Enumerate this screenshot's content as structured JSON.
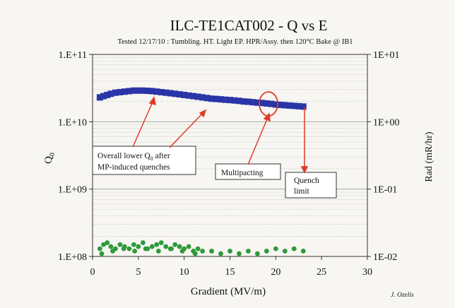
{
  "chart_data": {
    "type": "scatter",
    "title": "ILC-TE1CAT002 - Q vs E",
    "subtitle": "Tested 12/17/10 :  Tumbling. HT. Light EP. HPR/Assy. then 120°C Bake @ IB1",
    "xlabel": "Gradient (MV/m)",
    "ylabel_left": "Q",
    "ylabel_left_subscript": "0",
    "ylabel_right": "Rad (mR/hr)",
    "xlim": [
      0,
      30
    ],
    "ylim_left": [
      100000000,
      100000000000
    ],
    "ylim_right": [
      0.01,
      10
    ],
    "yscale": "log",
    "x_ticks": [
      0,
      5,
      10,
      15,
      20,
      25,
      30
    ],
    "x_tick_labels": [
      "0",
      "5",
      "10",
      "15",
      "20",
      "25",
      "30"
    ],
    "y_left_ticks": [
      100000000000,
      10000000000,
      1000000000,
      100000000
    ],
    "y_left_tick_labels": [
      "1.E+11",
      "1.E+10",
      "1.E+09",
      "1.E+08"
    ],
    "y_right_ticks": [
      10,
      1,
      0.1,
      0.01
    ],
    "y_right_tick_labels": [
      "1E+01",
      "1E+00",
      "1E-01",
      "1E-02"
    ],
    "grid": "horizontal log minor gridlines",
    "series": [
      {
        "color": "#2a35a8",
        "marker": "square",
        "axis": "left",
        "x": [
          0.8,
          1.2,
          1.6,
          2.0,
          2.5,
          3.0,
          3.5,
          4.0,
          4.5,
          5.0,
          5.5,
          6.0,
          6.5,
          7.0,
          7.5,
          8.0,
          8.5,
          9.0,
          9.5,
          10.0,
          10.5,
          11.0,
          11.5,
          12.0,
          12.5,
          13.0,
          13.5,
          14.0,
          14.5,
          15.0,
          15.5,
          16.0,
          16.5,
          17.0,
          17.5,
          18.0,
          18.5,
          19.0,
          19.5,
          20.0,
          20.5,
          21.0,
          21.5,
          22.0,
          22.5,
          23.0
        ],
        "y": [
          23000000000,
          24000000000,
          25000000000,
          26000000000,
          27000000000,
          27500000000,
          28000000000,
          28500000000,
          29000000000,
          29000000000,
          29000000000,
          28800000000,
          28500000000,
          28000000000,
          27500000000,
          27000000000,
          26500000000,
          26000000000,
          25500000000,
          25000000000,
          24500000000,
          24000000000,
          23500000000,
          23000000000,
          22500000000,
          22000000000,
          21800000000,
          21500000000,
          21200000000,
          21000000000,
          20700000000,
          20400000000,
          20000000000,
          19800000000,
          19500000000,
          19200000000,
          19000000000,
          18700000000,
          18400000000,
          18000000000,
          17800000000,
          17600000000,
          17400000000,
          17200000000,
          17000000000,
          16800000000
        ]
      },
      {
        "color": "#2f9a3a",
        "marker": "circle",
        "axis": "right",
        "x": [
          0.8,
          1.2,
          1.6,
          2.0,
          2.5,
          3.0,
          3.5,
          4.0,
          4.5,
          5.0,
          5.5,
          6.0,
          6.5,
          7.0,
          7.5,
          8.0,
          8.5,
          9.0,
          9.5,
          10.0,
          10.5,
          11.0,
          11.5,
          12.0,
          13.0,
          14.0,
          15.0,
          16.0,
          17.0,
          18.0,
          19.0,
          20.0,
          21.0,
          22.0,
          23.0,
          1.0,
          2.2,
          3.4,
          4.6,
          5.8,
          7.2,
          8.6,
          9.8,
          11.2
        ],
        "y": [
          0.013,
          0.015,
          0.016,
          0.014,
          0.013,
          0.015,
          0.014,
          0.013,
          0.015,
          0.014,
          0.016,
          0.013,
          0.014,
          0.015,
          0.016,
          0.014,
          0.013,
          0.015,
          0.014,
          0.013,
          0.014,
          0.012,
          0.013,
          0.012,
          0.012,
          0.011,
          0.012,
          0.011,
          0.012,
          0.011,
          0.012,
          0.013,
          0.012,
          0.013,
          0.012,
          0.011,
          0.012,
          0.013,
          0.012,
          0.013,
          0.012,
          0.013,
          0.012,
          0.011
        ]
      }
    ],
    "annotations": [
      {
        "text": "Overall lower Q",
        "subscript": "0",
        "text_after": " after",
        "line2": "MP-induced quenches"
      },
      {
        "text": "Multipacting"
      },
      {
        "text": "Quench",
        "line2": "limit"
      }
    ],
    "credit": "J. Ozelis"
  }
}
